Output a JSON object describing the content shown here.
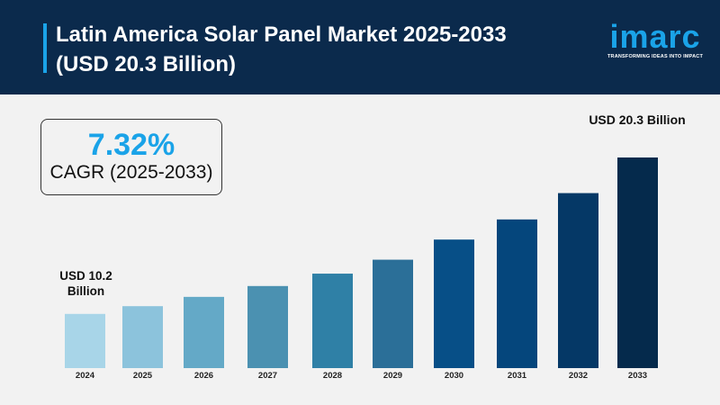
{
  "header": {
    "title_line1": "Latin America Solar Panel Market 2025-2033",
    "title_line2": "(USD 20.3 Billion)"
  },
  "logo": {
    "word": "imarc",
    "tagline": "TRANSFORMING IDEAS INTO IMPACT"
  },
  "cagr": {
    "value": "7.32%",
    "label": "CAGR (2025-2033)"
  },
  "annotations": {
    "start": "USD 10.2 Billion",
    "end": "USD 20.3 Billion"
  },
  "colors": {
    "header_bg": "#0b2a4c",
    "accent": "#1aa3e8",
    "background": "#f2f2f2"
  },
  "chart_data": {
    "type": "bar",
    "categories": [
      "2024",
      "2025",
      "2026",
      "2027",
      "2028",
      "2029",
      "2030",
      "2031",
      "2032",
      "2033"
    ],
    "values": [
      10.2,
      10.7,
      11.3,
      12.0,
      12.8,
      13.7,
      15.0,
      16.3,
      18.0,
      20.3
    ],
    "bar_colors": [
      "#a8d5e8",
      "#8cc3dc",
      "#64a9c7",
      "#4b91b1",
      "#2f80a6",
      "#2b6f98",
      "#074f87",
      "#05467c",
      "#053866",
      "#052a4c"
    ],
    "ylabel": "",
    "xlabel": "",
    "ylim": [
      6.7,
      20.3
    ],
    "grid": false,
    "axis_visible": false
  }
}
